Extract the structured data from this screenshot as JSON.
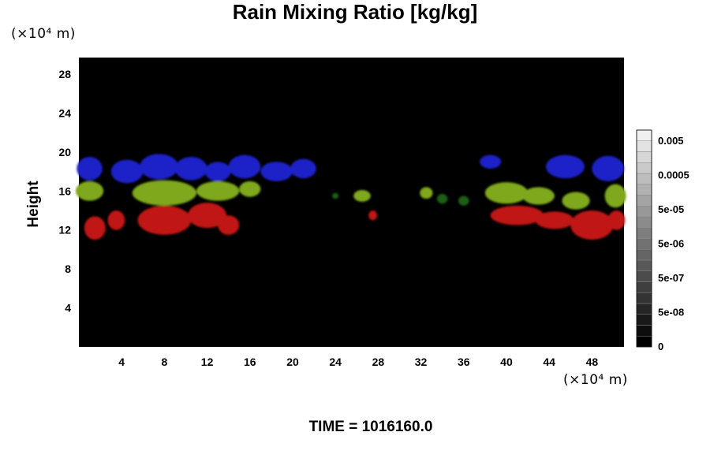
{
  "chart_data": {
    "type": "heatmap",
    "title": "Rain Mixing Ratio [kg/kg]",
    "ylabel": "Height",
    "x_unit": "(×10⁴ m)",
    "y_unit": "(×10⁴ m)",
    "xlim": [
      0,
      51
    ],
    "ylim": [
      0,
      29.7
    ],
    "x_ticks": [
      "4",
      "8",
      "12",
      "16",
      "20",
      "24",
      "28",
      "32",
      "36",
      "40",
      "44",
      "48"
    ],
    "y_ticks": [
      "4",
      "8",
      "12",
      "16",
      "20",
      "24",
      "28"
    ],
    "background": "#000000",
    "colorbar": {
      "labels": [
        "0",
        "5e-08",
        "5e-07",
        "5e-06",
        "5e-05",
        "0.0005",
        "0.005"
      ],
      "bands": 20
    },
    "features": [
      {
        "color": "#1f22c8",
        "blobs": [
          [
            1,
            18.3,
            1.2,
            1.2
          ],
          [
            4.5,
            18.0,
            1.5,
            1.2
          ],
          [
            7.5,
            18.5,
            1.8,
            1.3
          ],
          [
            10.5,
            18.3,
            1.5,
            1.2
          ],
          [
            13,
            18.0,
            1.2,
            1.0
          ],
          [
            15.5,
            18.5,
            1.5,
            1.2
          ],
          [
            18.5,
            18.0,
            1.5,
            1.0
          ],
          [
            21,
            18.3,
            1.2,
            1.0
          ],
          [
            38.5,
            19.0,
            1.0,
            0.7
          ],
          [
            45.5,
            18.5,
            1.8,
            1.2
          ],
          [
            49.5,
            18.3,
            1.5,
            1.3
          ]
        ]
      },
      {
        "color": "#7fa81a",
        "blobs": [
          [
            1,
            16.0,
            1.3,
            1.0
          ],
          [
            8,
            15.8,
            3.0,
            1.3
          ],
          [
            13,
            16.0,
            2.0,
            1.0
          ],
          [
            16,
            16.2,
            1.0,
            0.8
          ],
          [
            26.5,
            15.5,
            0.8,
            0.6
          ],
          [
            32.5,
            15.8,
            0.6,
            0.6
          ],
          [
            40,
            15.8,
            2.0,
            1.1
          ],
          [
            43,
            15.5,
            1.5,
            0.9
          ],
          [
            46.5,
            15.0,
            1.3,
            0.9
          ],
          [
            50.2,
            15.5,
            1.0,
            1.2
          ]
        ]
      },
      {
        "color": "#c01515",
        "blobs": [
          [
            1.5,
            12.2,
            1.0,
            1.2
          ],
          [
            3.5,
            13.0,
            0.8,
            1.0
          ],
          [
            8,
            13.0,
            2.5,
            1.5
          ],
          [
            12,
            13.5,
            1.8,
            1.3
          ],
          [
            14,
            12.5,
            1.0,
            1.0
          ],
          [
            27.5,
            13.5,
            0.4,
            0.5
          ],
          [
            41,
            13.5,
            2.5,
            1.0
          ],
          [
            44.5,
            13.0,
            1.8,
            0.9
          ],
          [
            48,
            12.5,
            2.0,
            1.5
          ],
          [
            50.3,
            13.0,
            0.8,
            1.0
          ]
        ]
      },
      {
        "color": "#1e5e14",
        "blobs": [
          [
            34,
            15.2,
            0.5,
            0.5
          ],
          [
            36,
            15.0,
            0.5,
            0.5
          ],
          [
            24,
            15.5,
            0.3,
            0.3
          ]
        ]
      }
    ]
  },
  "time_label": "TIME = 1016160.0"
}
